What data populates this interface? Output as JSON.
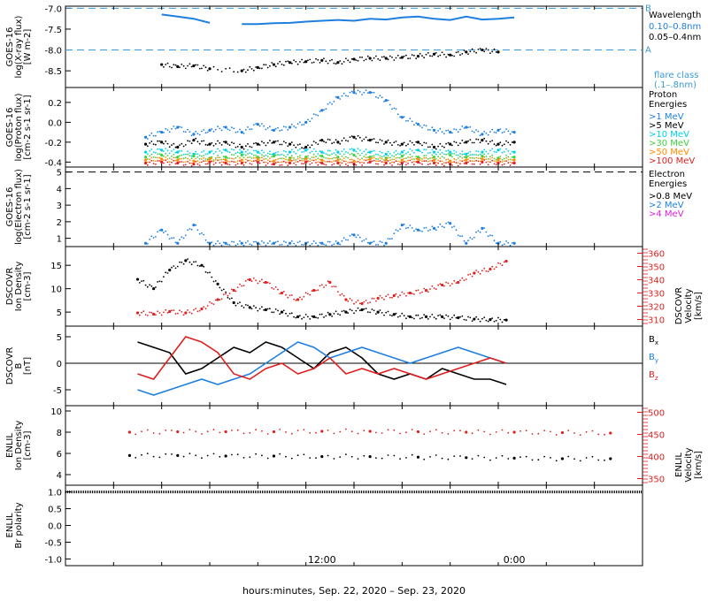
{
  "colors": {
    "black": "#000000",
    "blue": "#1f7fe0",
    "cyan": "#00d0e8",
    "green": "#40d040",
    "orange": "#ff8c00",
    "red": "#e02020",
    "magenta": "#e020e0",
    "ref_line": "#3a9ad8"
  },
  "xaxis": {
    "title": "hours:minutes, Sep. 22, 2020 – Sep. 23, 2020",
    "tick_labels": [
      "12:00",
      "0:00"
    ]
  },
  "chart_data": [
    {
      "type": "scatter",
      "id": "xray",
      "ylabel": [
        "GOES-16",
        "log(X-ray flux)",
        "[W m-2]"
      ],
      "ylim": [
        -8.9,
        -6.95
      ],
      "yticks": [
        -7.0,
        -7.5,
        -8.0,
        -8.5
      ],
      "ytick_labels": [
        "-7.0",
        "-7.5",
        "-8.0",
        "-8.5"
      ],
      "x": [
        2.0,
        3.0,
        4.0,
        5.0,
        6.0,
        7.0,
        8.0,
        9.0,
        10.0,
        11.0,
        12.0,
        13.0,
        14.0,
        15.0,
        16.0,
        17.0,
        18.0,
        19.0,
        20.0,
        21.0,
        22.0,
        23.0,
        24.0
      ],
      "series": [
        {
          "name": "0.10–0.8nm",
          "color": "blue",
          "connected": true,
          "values": [
            -7.15,
            -7.2,
            -7.25,
            -7.35,
            null,
            -7.38,
            -7.38,
            -7.36,
            -7.35,
            -7.32,
            -7.3,
            -7.28,
            -7.3,
            -7.25,
            -7.27,
            -7.22,
            -7.2,
            -7.25,
            -7.28,
            -7.2,
            -7.27,
            -7.25,
            -7.22
          ]
        },
        {
          "name": "0.05–0.4nm",
          "color": "black",
          "connected": false,
          "values": [
            -8.35,
            -8.4,
            -8.38,
            -8.45,
            null,
            -8.5,
            -8.42,
            -8.35,
            -8.3,
            -8.28,
            -8.25,
            -8.3,
            -8.22,
            -8.2,
            -8.2,
            -8.18,
            -8.15,
            -8.1,
            -8.12,
            -8.05,
            -8.0,
            -8.05,
            null
          ]
        }
      ],
      "reference_lines": [
        {
          "y": -7.0,
          "label": "B"
        },
        {
          "y": -8.0,
          "label": "A"
        }
      ],
      "legend": {
        "title": "Wavelength",
        "extra": "flare class\n(.1–.8nm)"
      }
    },
    {
      "type": "scatter",
      "id": "proton",
      "ylabel": [
        "GOES-16",
        "log(Proton flux)",
        "[cm-2 s-1 sr-1]"
      ],
      "ylim": [
        -0.45,
        0.35
      ],
      "yticks": [
        0.2,
        0.0,
        -0.2,
        -0.4
      ],
      "ytick_labels": [
        "0.2",
        "0.0",
        "-0.2",
        "-0.4"
      ],
      "x": [
        1.0,
        2.0,
        3.0,
        4.0,
        5.0,
        6.0,
        7.0,
        8.0,
        9.0,
        10.0,
        11.0,
        12.0,
        13.0,
        14.0,
        15.0,
        16.0,
        17.0,
        18.0,
        19.0,
        20.0,
        21.0,
        22.0,
        23.0,
        24.0
      ],
      "series": [
        {
          "name": ">1 MeV",
          "color": "blue",
          "values": [
            -0.15,
            -0.1,
            -0.05,
            -0.12,
            -0.08,
            -0.05,
            -0.1,
            -0.02,
            -0.08,
            -0.05,
            0.0,
            0.12,
            0.25,
            0.3,
            0.3,
            0.22,
            0.05,
            -0.02,
            -0.08,
            -0.1,
            -0.05,
            -0.12,
            -0.08,
            -0.1
          ]
        },
        {
          "name": ">5 MeV",
          "color": "black",
          "values": [
            -0.22,
            -0.2,
            -0.25,
            -0.18,
            -0.22,
            -0.2,
            -0.25,
            -0.22,
            -0.2,
            -0.22,
            -0.25,
            -0.18,
            -0.2,
            -0.15,
            -0.18,
            -0.2,
            -0.22,
            -0.2,
            -0.25,
            -0.22,
            -0.2,
            -0.18,
            -0.22,
            -0.2
          ]
        },
        {
          "name": ">10 MeV",
          "color": "cyan",
          "values": [
            -0.3,
            -0.28,
            -0.3,
            -0.32,
            -0.3,
            -0.28,
            -0.3,
            -0.3,
            -0.32,
            -0.3,
            -0.28,
            -0.3,
            -0.3,
            -0.28,
            -0.3,
            -0.32,
            -0.3,
            -0.28,
            -0.3,
            -0.3,
            -0.32,
            -0.3,
            -0.28,
            -0.3
          ]
        },
        {
          "name": ">30 MeV",
          "color": "green",
          "values": [
            -0.35,
            -0.33,
            -0.35,
            -0.34,
            -0.36,
            -0.35,
            -0.33,
            -0.35,
            -0.34,
            -0.36,
            -0.35,
            -0.34,
            -0.35,
            -0.33,
            -0.35,
            -0.36,
            -0.34,
            -0.35,
            -0.35,
            -0.33,
            -0.35,
            -0.34,
            -0.36,
            -0.35
          ]
        },
        {
          "name": ">50 MeV",
          "color": "orange",
          "values": [
            -0.38,
            -0.37,
            -0.38,
            -0.39,
            -0.37,
            -0.38,
            -0.38,
            -0.37,
            -0.39,
            -0.38,
            -0.37,
            -0.38,
            -0.38,
            -0.39,
            -0.37,
            -0.38,
            -0.38,
            -0.37,
            -0.38,
            -0.39,
            -0.38,
            -0.37,
            -0.38,
            -0.38
          ]
        },
        {
          "name": ">100 MeV",
          "color": "red",
          "values": [
            -0.41,
            -0.4,
            -0.41,
            -0.42,
            -0.4,
            -0.41,
            -0.41,
            -0.4,
            -0.42,
            -0.41,
            -0.4,
            -0.41,
            -0.41,
            -0.42,
            -0.4,
            -0.41,
            -0.41,
            -0.4,
            -0.41,
            -0.42,
            -0.41,
            -0.4,
            -0.41,
            -0.41
          ]
        }
      ],
      "legend": {
        "title": "Proton\nEnergies"
      }
    },
    {
      "type": "scatter",
      "id": "electron",
      "ylabel": [
        "GOES-16",
        "log(Electron flux)",
        "[cm-2 s-1 sr-1]"
      ],
      "ylim": [
        0.5,
        5.3
      ],
      "yticks": [
        5,
        4,
        3,
        2,
        1
      ],
      "ytick_labels": [
        "5",
        "4",
        "3",
        "2",
        "1"
      ],
      "x": [
        1.0,
        2.0,
        3.0,
        4.0,
        5.0,
        6.0,
        7.0,
        8.0,
        9.0,
        10.0,
        11.0,
        12.0,
        13.0,
        14.0,
        15.0,
        16.0,
        17.0,
        18.0,
        19.0,
        20.0,
        21.0,
        22.0,
        23.0,
        24.0
      ],
      "series": [
        {
          "name": ">0.8 MeV",
          "color": "black",
          "values": []
        },
        {
          "name": ">2 MeV",
          "color": "blue",
          "values": [
            0.7,
            1.5,
            0.7,
            1.8,
            0.7,
            0.7,
            0.7,
            0.7,
            0.7,
            0.7,
            0.7,
            0.7,
            0.7,
            1.2,
            0.7,
            0.7,
            1.8,
            1.5,
            1.6,
            1.9,
            0.7,
            1.6,
            0.7,
            0.7
          ]
        },
        {
          "name": ">4 MeV",
          "color": "magenta",
          "values": []
        }
      ],
      "reference_lines": [
        {
          "y": 5.0,
          "label": ""
        }
      ],
      "legend": {
        "title": "Electron\nEnergies"
      }
    },
    {
      "type": "scatter",
      "id": "dscovr_density",
      "ylabel": [
        "DSCOVR",
        "Ion Density",
        "[cm-3]"
      ],
      "ylim": [
        2,
        19
      ],
      "yticks": [
        15,
        10,
        5
      ],
      "ytick_labels": [
        "15",
        "10",
        "5"
      ],
      "y2label": [
        "DSCOVR",
        "Velocity",
        "[km/s]"
      ],
      "y2lim": [
        305,
        365
      ],
      "y2ticks": [
        360,
        350,
        340,
        330,
        320,
        310
      ],
      "y2tick_labels": [
        "360",
        "350",
        "340",
        "330",
        "320",
        "310"
      ],
      "x": [
        0.5,
        1.5,
        2.5,
        3.5,
        4.5,
        5.5,
        6.5,
        7.5,
        8.5,
        9.5,
        10.5,
        11.5,
        12.5,
        13.5,
        14.5,
        15.5,
        16.5,
        17.5,
        18.5,
        19.5,
        20.5,
        21.5,
        22.5,
        23.5
      ],
      "series": [
        {
          "name": "Ion Density",
          "color": "black",
          "axis": "left",
          "values": [
            12,
            10,
            14,
            16,
            15,
            11,
            7,
            6,
            5.5,
            5,
            4,
            4,
            4.5,
            5,
            5.5,
            5,
            4.5,
            4,
            4,
            4,
            3.8,
            3.5,
            3.4,
            3.3
          ]
        },
        {
          "name": "Velocity",
          "color": "red",
          "axis": "right",
          "values": [
            315,
            314,
            316,
            315,
            318,
            325,
            332,
            340,
            338,
            330,
            325,
            332,
            338,
            325,
            322,
            326,
            328,
            330,
            332,
            336,
            338,
            345,
            348,
            354
          ]
        }
      ]
    },
    {
      "type": "line",
      "id": "dscovr_b",
      "ylabel": [
        "DSCOVR",
        "B",
        "[nT]"
      ],
      "ylim": [
        -8,
        7
      ],
      "yticks": [
        5,
        0,
        -5
      ],
      "ytick_labels": [
        "5",
        "0",
        "-5"
      ],
      "x": [
        0.5,
        1.5,
        2.5,
        3.5,
        4.5,
        5.5,
        6.5,
        7.5,
        8.5,
        9.5,
        10.5,
        11.5,
        12.5,
        13.5,
        14.5,
        15.5,
        16.5,
        17.5,
        18.5,
        19.5,
        20.5,
        21.5,
        22.5,
        23.5
      ],
      "series": [
        {
          "name": "Bx",
          "color": "black",
          "values": [
            4,
            3,
            2,
            -2,
            -1,
            1,
            3,
            2,
            4,
            3,
            1,
            -1,
            2,
            3,
            1,
            -2,
            -3,
            -2,
            -3,
            -1,
            -2,
            -3,
            -3,
            -4
          ]
        },
        {
          "name": "By",
          "color": "blue",
          "values": [
            -5,
            -6,
            -5,
            -4,
            -3,
            -4,
            -3,
            -2,
            0,
            2,
            4,
            3,
            1,
            2,
            3,
            2,
            1,
            0,
            1,
            2,
            3,
            2,
            1,
            0
          ]
        },
        {
          "name": "Bz",
          "color": "red",
          "values": [
            -2,
            -3,
            1,
            5,
            4,
            2,
            -2,
            -3,
            -1,
            0,
            -2,
            -1,
            1,
            -2,
            -1,
            -2,
            -1,
            -2,
            -3,
            -2,
            -1,
            0,
            1,
            0
          ]
        }
      ],
      "legend": {
        "labels": [
          "Bx",
          "By",
          "Bz"
        ]
      }
    },
    {
      "type": "scatter",
      "id": "enlil_density",
      "ylabel": [
        "ENLIL",
        "Ion Density",
        "[cm-3]"
      ],
      "ylim": [
        3,
        10.5
      ],
      "yticks": [
        10,
        8,
        6,
        4
      ],
      "ytick_labels": [
        "10",
        "8",
        "6",
        "4"
      ],
      "y2label": [
        "ENLIL",
        "Velocity",
        "[km/s]"
      ],
      "y2lim": [
        335,
        515
      ],
      "y2ticks": [
        500,
        450,
        400,
        350
      ],
      "y2tick_labels": [
        "500",
        "450",
        "400",
        "350"
      ],
      "x": [
        0,
        3,
        6,
        9,
        12,
        15,
        18,
        21,
        24,
        27,
        30
      ],
      "series": [
        {
          "name": "Ion Density",
          "color": "black",
          "axis": "left",
          "values": [
            5.8,
            5.8,
            5.75,
            5.75,
            5.7,
            5.7,
            5.65,
            5.6,
            5.55,
            5.5,
            5.5
          ]
        },
        {
          "name": "Velocity",
          "color": "red",
          "axis": "right",
          "values": [
            455,
            456,
            456,
            456,
            457,
            457,
            456,
            455,
            455,
            454,
            453
          ]
        }
      ]
    },
    {
      "type": "scatter",
      "id": "enlil_polarity",
      "ylabel": [
        "ENLIL",
        "Br polarity"
      ],
      "ylim": [
        -1.2,
        1.2
      ],
      "yticks": [
        1.0,
        0.5,
        0.0,
        -0.5,
        -1.0
      ],
      "ytick_labels": [
        "1.0",
        "0.5",
        "0.0",
        "-0.5",
        "-1.0"
      ],
      "x": [
        0,
        30
      ],
      "series": [
        {
          "name": "Br polarity",
          "color": "black",
          "values": [
            1.0,
            1.0
          ]
        }
      ]
    }
  ]
}
